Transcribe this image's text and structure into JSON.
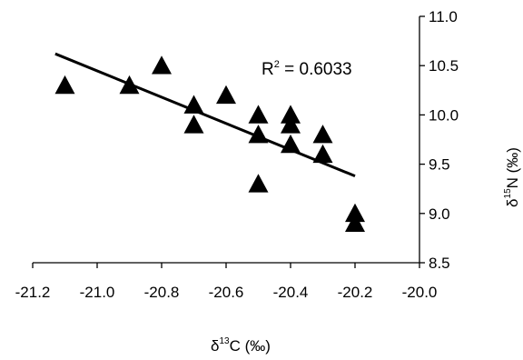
{
  "chart_data": {
    "type": "scatter",
    "title": "",
    "xlabel": {
      "symbol": "δ",
      "sup": "13",
      "rest": "C (‰)"
    },
    "ylabel": {
      "symbol": "δ",
      "sup": "15",
      "rest": "N (‰)"
    },
    "xlim": [
      -21.2,
      -20.0
    ],
    "ylim": [
      8.5,
      11.0
    ],
    "xticks": [
      "-21.2",
      "-21.0",
      "-20.8",
      "-20.6",
      "-20.4",
      "-20.2",
      "-20.0"
    ],
    "yticks": [
      "8.5",
      "9.0",
      "9.5",
      "10.0",
      "10.5",
      "11.0"
    ],
    "y_axis_position": "right",
    "grid": false,
    "marker": "triangle",
    "marker_color": "#000000",
    "points": [
      {
        "x": -21.1,
        "y": 10.3
      },
      {
        "x": -20.9,
        "y": 10.3
      },
      {
        "x": -20.8,
        "y": 10.5
      },
      {
        "x": -20.7,
        "y": 10.1
      },
      {
        "x": -20.7,
        "y": 9.9
      },
      {
        "x": -20.6,
        "y": 10.2
      },
      {
        "x": -20.5,
        "y": 10.0
      },
      {
        "x": -20.5,
        "y": 9.8
      },
      {
        "x": -20.5,
        "y": 9.3
      },
      {
        "x": -20.4,
        "y": 10.0
      },
      {
        "x": -20.4,
        "y": 9.9
      },
      {
        "x": -20.4,
        "y": 9.7
      },
      {
        "x": -20.3,
        "y": 9.8
      },
      {
        "x": -20.3,
        "y": 9.6
      },
      {
        "x": -20.2,
        "y": 9.0
      },
      {
        "x": -20.2,
        "y": 8.9
      }
    ],
    "trendline": {
      "x": [
        -21.13,
        -20.2
      ],
      "y": [
        10.62,
        9.38
      ]
    },
    "annotation": {
      "base": "R",
      "sup": "2",
      "rest": " = 0.6033"
    }
  }
}
